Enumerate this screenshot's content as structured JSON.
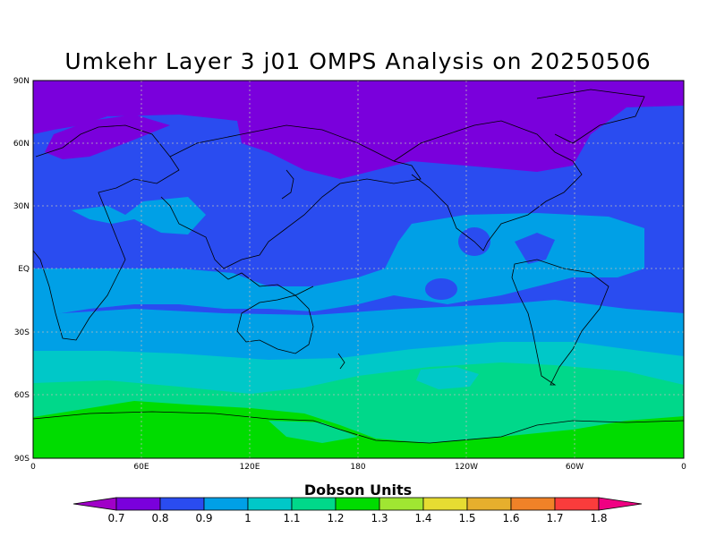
{
  "title": "Umkehr Layer 3 j01 OMPS Analysis on 20250506",
  "colorbar": {
    "title": "Dobson Units",
    "levels": [
      "0.7",
      "0.8",
      "0.9",
      "1",
      "1.1",
      "1.2",
      "1.3",
      "1.4",
      "1.5",
      "1.6",
      "1.7",
      "1.8"
    ],
    "colors": [
      "#a000c8",
      "#7a00dc",
      "#2a4cf0",
      "#00a0e6",
      "#00c8c8",
      "#00d88a",
      "#00dc00",
      "#a0e632",
      "#e6dc32",
      "#e6af2d",
      "#f08228",
      "#fa3c3c",
      "#f00082"
    ]
  },
  "map": {
    "lat_labels": [
      "90N",
      "60N",
      "30N",
      "EQ",
      "30S",
      "60S",
      "90S"
    ],
    "lon_labels": [
      "0",
      "60E",
      "120E",
      "180",
      "120W",
      "60W",
      "0"
    ],
    "grid": "dotted",
    "field_colors": {
      "deep_purple": "#7a00dc",
      "blue": "#2a4cf0",
      "light_blue": "#00a0e6",
      "cyan": "#00c8c8",
      "teal_green": "#00d88a",
      "green": "#00dc00"
    }
  }
}
